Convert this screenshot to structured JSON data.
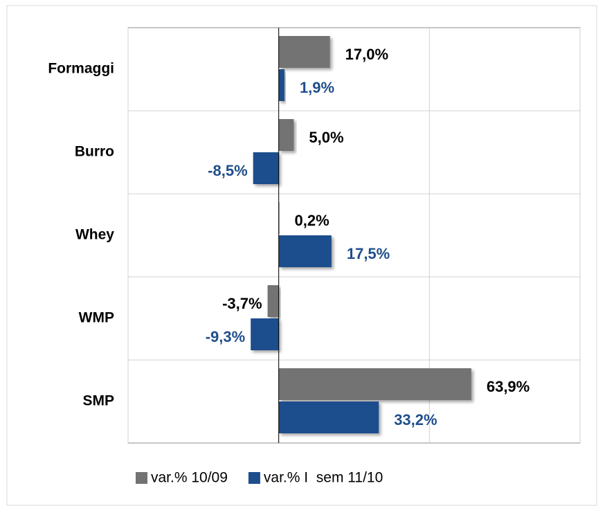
{
  "chart_data": {
    "type": "hbar",
    "categories": [
      "Formaggi",
      "Burro",
      "Whey",
      "WMP",
      "SMP"
    ],
    "series": [
      {
        "name": "var.% 10/09",
        "color": "#737373",
        "label_color": "#000000",
        "values": [
          17.0,
          5.0,
          0.2,
          -3.7,
          63.9
        ],
        "value_labels": [
          "17,0%",
          "5,0%",
          "0,2%",
          "-3,7%",
          "63,9%"
        ]
      },
      {
        "name": "var.% I  sem 11/10",
        "color": "#1f4e8c",
        "label_color": "#1f4e8c",
        "values": [
          1.9,
          -8.5,
          17.5,
          -9.3,
          33.2
        ],
        "value_labels": [
          "1,9%",
          "-8,5%",
          "17,5%",
          "-9,3%",
          "33,2%"
        ]
      }
    ],
    "xlim": [
      -50,
      100
    ],
    "xticks": [
      -50,
      0,
      50,
      100
    ],
    "grid": true,
    "legend": "bottom"
  }
}
